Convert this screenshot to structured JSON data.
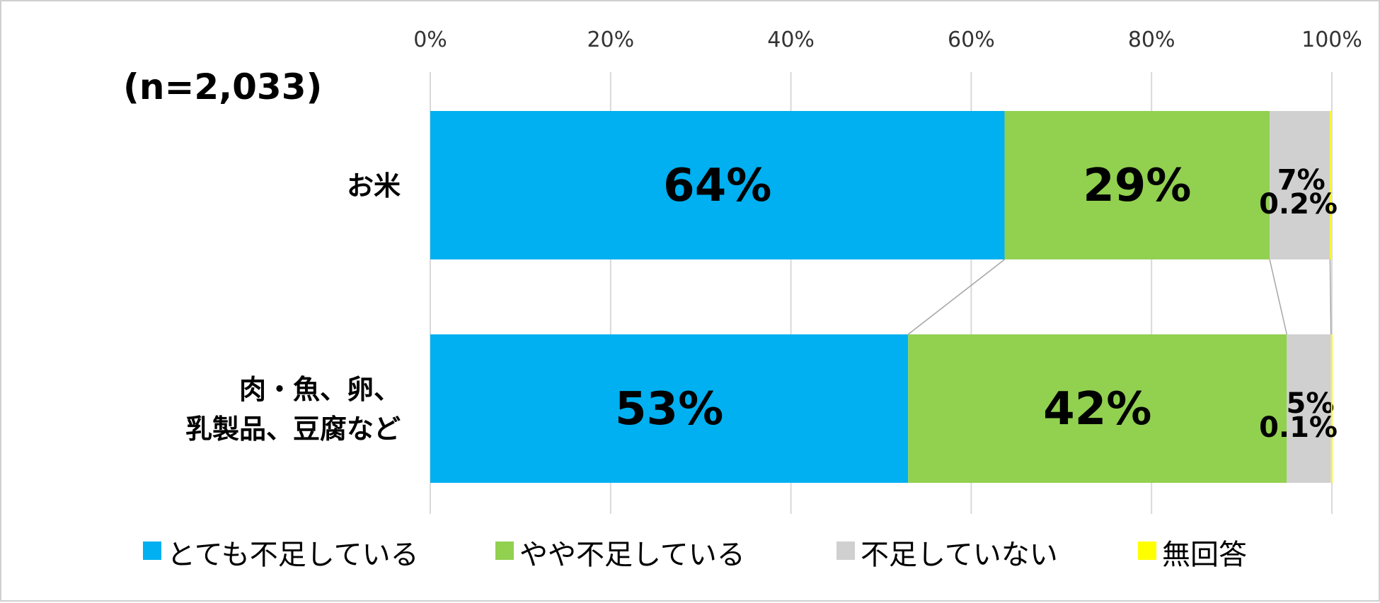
{
  "chart_data": {
    "type": "bar",
    "orientation": "horizontal",
    "stacked": true,
    "sample_size": "(n=2,033)",
    "categories": [
      "お米",
      "肉・魚、卵、|乳製品、豆腐など"
    ],
    "series": [
      {
        "name": "とても不足している",
        "color": "#00B0F0",
        "values": [
          63.7,
          53.0
        ],
        "labels": [
          "64%",
          "53%"
        ]
      },
      {
        "name": "やや不足している",
        "color": "#92D050",
        "values": [
          29.4,
          42.0
        ],
        "labels": [
          "29%",
          "42%"
        ]
      },
      {
        "name": "不足していない",
        "color": "#D0D0D0",
        "values": [
          6.7,
          4.9
        ],
        "labels": [
          "7%",
          "5%"
        ]
      },
      {
        "name": "無回答",
        "color": "#FFFF00",
        "values": [
          0.2,
          0.1
        ],
        "labels": [
          "0.2%",
          "0.1%"
        ]
      }
    ],
    "xlim": [
      0,
      100
    ],
    "x_ticks": [
      "0%",
      "20%",
      "40%",
      "60%",
      "80%",
      "100%"
    ],
    "grid": true,
    "legend_position": "bottom"
  }
}
